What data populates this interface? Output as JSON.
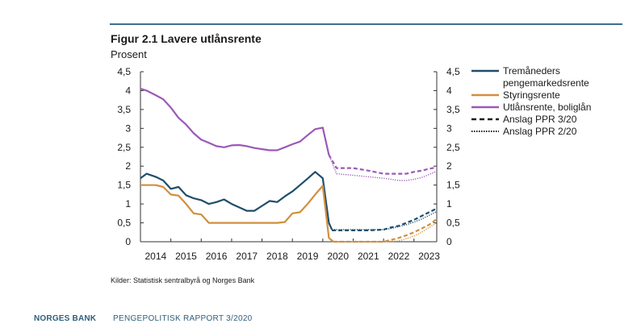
{
  "figure": {
    "title": "Figur 2.1 Lavere utlånsrente",
    "unit": "Prosent",
    "source": "Kilder: Statistisk sentralbyrå og Norges Bank"
  },
  "footer": {
    "brand": "NORGES BANK",
    "report": "PENGEPOLITISK RAPPORT 3/2020"
  },
  "chart_data": {
    "type": "line",
    "ylim": [
      0,
      4.5
    ],
    "xlim": [
      2014.0,
      2023.75
    ],
    "y_ticks": [
      "0",
      "0,5",
      "1",
      "1,5",
      "2",
      "2,5",
      "3",
      "3,5",
      "4",
      "4,5"
    ],
    "y_tick_values": [
      0,
      0.5,
      1,
      1.5,
      2,
      2.5,
      3,
      3.5,
      4,
      4.5
    ],
    "x_ticks": [
      "2014",
      "2015",
      "2016",
      "2017",
      "2018",
      "2019",
      "2020",
      "2021",
      "2022",
      "2023"
    ],
    "x_tick_values": [
      2014.5,
      2015.5,
      2016.5,
      2017.5,
      2018.5,
      2019.5,
      2020.5,
      2021.5,
      2022.5,
      2023.5
    ],
    "grid": false,
    "legend_position": "right",
    "colors": {
      "blue": "#1f4e6b",
      "orange": "#d18f3e",
      "purple": "#9b59b6"
    },
    "legend": [
      {
        "label": "Tremåneders\npengemarkedsrente",
        "color": "#1f4e6b",
        "style": "solid"
      },
      {
        "label": "Styringsrente",
        "color": "#d18f3e",
        "style": "solid"
      },
      {
        "label": "Utlånsrente, boliglån",
        "color": "#9b59b6",
        "style": "solid"
      },
      {
        "label": "Anslag PPR 3/20",
        "color": "#1a1a1a",
        "style": "dashed"
      },
      {
        "label": "Anslag PPR 2/20",
        "color": "#1a1a1a",
        "style": "dotted"
      }
    ],
    "series": [
      {
        "name": "Tremåneders pengemarkedsrente",
        "color": "#1f4e6b",
        "style": "solid",
        "width": 2.2,
        "x": [
          2014.0,
          2014.2,
          2014.5,
          2014.75,
          2015.0,
          2015.25,
          2015.5,
          2015.75,
          2016.0,
          2016.25,
          2016.5,
          2016.75,
          2017.0,
          2017.5,
          2017.75,
          2018.0,
          2018.25,
          2018.5,
          2018.75,
          2019.0,
          2019.25,
          2019.5,
          2019.75,
          2020.0,
          2020.2,
          2020.3
        ],
        "y": [
          1.68,
          1.8,
          1.72,
          1.62,
          1.4,
          1.45,
          1.23,
          1.15,
          1.1,
          1.0,
          1.05,
          1.12,
          1.0,
          0.82,
          0.82,
          0.95,
          1.08,
          1.05,
          1.2,
          1.33,
          1.5,
          1.67,
          1.85,
          1.68,
          0.5,
          0.32
        ]
      },
      {
        "name": "Styringsrente",
        "color": "#d18f3e",
        "style": "solid",
        "width": 2.2,
        "x": [
          2014.0,
          2014.5,
          2014.75,
          2015.0,
          2015.25,
          2015.5,
          2015.75,
          2016.0,
          2016.25,
          2016.5,
          2016.75,
          2017.0,
          2017.5,
          2018.0,
          2018.5,
          2018.75,
          2019.0,
          2019.25,
          2019.5,
          2019.75,
          2020.0,
          2020.2,
          2020.35
        ],
        "y": [
          1.5,
          1.5,
          1.45,
          1.25,
          1.22,
          1.0,
          0.75,
          0.72,
          0.5,
          0.5,
          0.5,
          0.5,
          0.5,
          0.5,
          0.5,
          0.52,
          0.75,
          0.78,
          1.0,
          1.25,
          1.48,
          0.1,
          0.0
        ]
      },
      {
        "name": "Utlånsrente, boliglån",
        "color": "#9b59b6",
        "style": "solid",
        "width": 2.2,
        "x": [
          2014.0,
          2014.2,
          2014.5,
          2014.75,
          2015.0,
          2015.25,
          2015.5,
          2015.75,
          2016.0,
          2016.25,
          2016.5,
          2016.75,
          2017.0,
          2017.25,
          2017.5,
          2017.75,
          2018.0,
          2018.25,
          2018.5,
          2018.75,
          2019.0,
          2019.25,
          2019.5,
          2019.75,
          2020.0,
          2020.2
        ],
        "y": [
          4.05,
          4.0,
          3.88,
          3.77,
          3.55,
          3.28,
          3.1,
          2.87,
          2.7,
          2.62,
          2.53,
          2.5,
          2.55,
          2.56,
          2.53,
          2.48,
          2.45,
          2.42,
          2.42,
          2.5,
          2.58,
          2.65,
          2.82,
          2.98,
          3.02,
          2.3
        ]
      },
      {
        "name": "Anslag PPR 3/20",
        "color": "#1f4e6b",
        "style": "dashed",
        "width": 2.2,
        "x": [
          2020.3,
          2020.5,
          2021.0,
          2021.5,
          2022.0,
          2022.25,
          2022.5,
          2022.75,
          2023.0,
          2023.25,
          2023.5,
          2023.75
        ],
        "y": [
          0.3,
          0.3,
          0.3,
          0.3,
          0.32,
          0.38,
          0.42,
          0.5,
          0.58,
          0.68,
          0.78,
          0.88
        ]
      },
      {
        "name": "Anslag PPR 3/20 (styringsrente)",
        "color": "#d18f3e",
        "style": "dashed",
        "width": 2.2,
        "x": [
          2020.35,
          2021.0,
          2021.5,
          2022.0,
          2022.25,
          2022.5,
          2022.75,
          2023.0,
          2023.25,
          2023.5,
          2023.75
        ],
        "y": [
          0.0,
          0.0,
          0.0,
          0.0,
          0.05,
          0.1,
          0.17,
          0.25,
          0.35,
          0.45,
          0.6
        ]
      },
      {
        "name": "Anslag PPR 3/20 (utlånsrente)",
        "color": "#9b59b6",
        "style": "dashed",
        "width": 2.2,
        "x": [
          2020.2,
          2020.45,
          2020.7,
          2021.0,
          2021.5,
          2022.0,
          2022.25,
          2022.5,
          2022.75,
          2023.0,
          2023.25,
          2023.5,
          2023.75
        ],
        "y": [
          2.3,
          1.95,
          1.95,
          1.95,
          1.88,
          1.8,
          1.8,
          1.8,
          1.8,
          1.85,
          1.88,
          1.93,
          1.97
        ]
      },
      {
        "name": "Anslag PPR 2/20",
        "color": "#1f4e6b",
        "style": "dotted",
        "width": 1.4,
        "x": [
          2020.3,
          2020.5,
          2021.0,
          2021.5,
          2022.0,
          2022.25,
          2022.5,
          2022.75,
          2023.0,
          2023.25,
          2023.5,
          2023.75
        ],
        "y": [
          0.32,
          0.32,
          0.32,
          0.32,
          0.32,
          0.35,
          0.4,
          0.45,
          0.52,
          0.6,
          0.7,
          0.8
        ]
      },
      {
        "name": "Anslag PPR 2/20 (styringsrente)",
        "color": "#d18f3e",
        "style": "dotted",
        "width": 1.4,
        "x": [
          2020.35,
          2021.0,
          2021.5,
          2022.0,
          2022.5,
          2022.75,
          2023.0,
          2023.25,
          2023.5,
          2023.75
        ],
        "y": [
          0.0,
          0.0,
          0.0,
          0.0,
          0.02,
          0.08,
          0.15,
          0.25,
          0.38,
          0.5
        ]
      },
      {
        "name": "Anslag PPR 2/20 (utlånsrente)",
        "color": "#9b59b6",
        "style": "dotted",
        "width": 1.4,
        "x": [
          2020.2,
          2020.45,
          2020.7,
          2021.0,
          2021.5,
          2022.0,
          2022.5,
          2022.75,
          2023.0,
          2023.25,
          2023.5,
          2023.75
        ],
        "y": [
          2.3,
          1.8,
          1.78,
          1.76,
          1.72,
          1.68,
          1.62,
          1.62,
          1.65,
          1.7,
          1.78,
          1.87
        ]
      }
    ]
  }
}
